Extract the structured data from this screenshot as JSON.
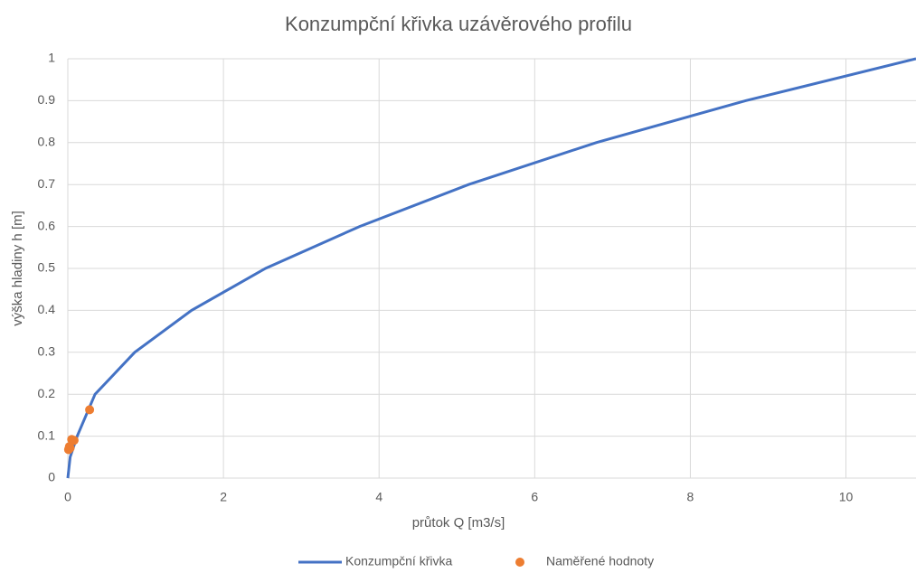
{
  "chart_data": {
    "type": "line",
    "title": "Konzumpční křivka uzávěrového profilu",
    "xlabel": "průtok Q [m3/s]",
    "ylabel": "výška hladiny h  [m]",
    "xlim": [
      0,
      10.9
    ],
    "xticks": [
      0,
      2,
      4,
      6,
      8,
      10
    ],
    "ylim": [
      0,
      1
    ],
    "yticks": [
      0,
      0.1,
      0.2,
      0.3,
      0.4,
      0.5,
      0.6,
      0.7,
      0.8,
      0.9,
      1
    ],
    "grid": true,
    "legend": "bottom",
    "series": [
      {
        "name": "Konzumpční křivka",
        "color": "#4472c4",
        "type": "line",
        "x": [
          0,
          0.03,
          0.12,
          0.35,
          0.86,
          1.59,
          2.54,
          3.75,
          5.15,
          6.79,
          8.71,
          10.9
        ],
        "values": [
          0,
          0.05,
          0.1,
          0.2,
          0.3,
          0.4,
          0.5,
          0.6,
          0.7,
          0.8,
          0.9,
          1
        ]
      },
      {
        "name": "Naměřené hodnoty",
        "color": "#ed7d31",
        "type": "scatter",
        "x": [
          0.28,
          0.08,
          0.05,
          0.02,
          0.01,
          0.03
        ],
        "values": [
          0.163,
          0.09,
          0.092,
          0.075,
          0.068,
          0.072
        ]
      }
    ]
  }
}
